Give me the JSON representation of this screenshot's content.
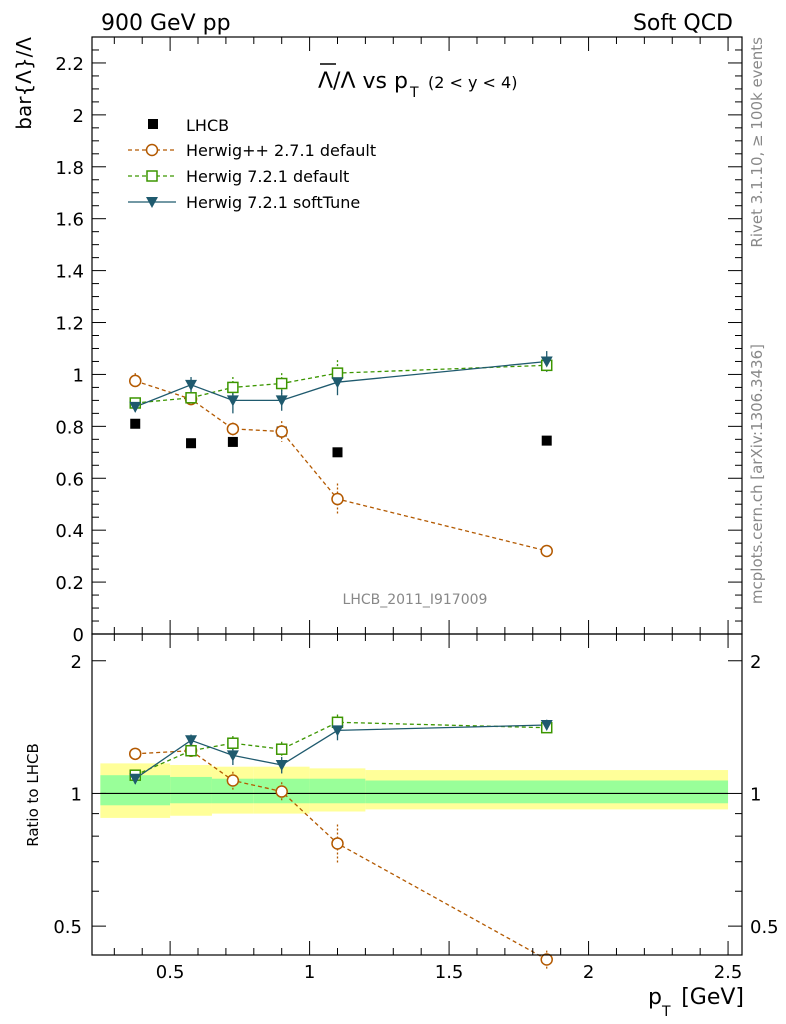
{
  "header": {
    "left": "900 GeV pp",
    "right": "Soft QCD"
  },
  "side_labels": {
    "rivet": "Rivet 3.1.10, ≥ 100k events",
    "mcplots": "mcplots.cern.ch [arXiv:1306.3436]"
  },
  "chart_data": [
    {
      "panel": "main",
      "type": "scatter",
      "title_main": "Λ/Λ vs p",
      "title_sub": "T",
      "title_range": "(2 < y < 4)",
      "ylabel": "bar{Λ}/Λ",
      "watermark": "LHCB_2011_I917009",
      "xlim": [
        0.22,
        2.55
      ],
      "ylim": [
        0,
        2.3
      ],
      "yticks": [
        0,
        0.2,
        0.4,
        0.6,
        0.8,
        1,
        1.2,
        1.4,
        1.6,
        1.8,
        2,
        2.2
      ],
      "ytick_labels": [
        "0",
        "0.2",
        "0.4",
        "0.6",
        "0.8",
        "1",
        "1.2",
        "1.4",
        "1.6",
        "1.8",
        "2",
        "2.2"
      ],
      "legend_position": "top-left",
      "series": [
        {
          "name": "LHCB",
          "style": "data",
          "color": "#000000",
          "marker": "square-filled",
          "x": [
            0.375,
            0.575,
            0.725,
            0.9,
            1.1,
            1.85
          ],
          "y": [
            0.81,
            0.735,
            0.74,
            0.78,
            0.7,
            0.745
          ],
          "err": [
            0.01,
            0.01,
            0.01,
            0.01,
            0.01,
            0.01
          ]
        },
        {
          "name": "Herwig++ 2.7.1 default",
          "style": "dashed",
          "color": "#b35900",
          "marker": "circle-open",
          "x": [
            0.375,
            0.575,
            0.725,
            0.9,
            1.1,
            1.85
          ],
          "y": [
            0.975,
            0.905,
            0.79,
            0.78,
            0.52,
            0.32
          ],
          "err": [
            0.03,
            0.02,
            0.025,
            0.04,
            0.06,
            0.015
          ]
        },
        {
          "name": "Herwig 7.2.1 default",
          "style": "dashed",
          "color": "#3c9600",
          "marker": "square-open",
          "x": [
            0.375,
            0.575,
            0.725,
            0.9,
            1.1,
            1.85
          ],
          "y": [
            0.89,
            0.91,
            0.95,
            0.965,
            1.005,
            1.035
          ],
          "err": [
            0.02,
            0.02,
            0.04,
            0.04,
            0.05,
            0.02
          ]
        },
        {
          "name": "Herwig 7.2.1 softTune",
          "style": "solid",
          "color": "#1f5a6e",
          "marker": "triangle-down-filled",
          "x": [
            0.375,
            0.575,
            0.725,
            0.9,
            1.1,
            1.85
          ],
          "y": [
            0.875,
            0.96,
            0.9,
            0.9,
            0.97,
            1.05
          ],
          "err": [
            0.02,
            0.03,
            0.05,
            0.04,
            0.05,
            0.04
          ]
        }
      ]
    },
    {
      "panel": "ratio",
      "type": "scatter",
      "ylabel": "Ratio to LHCB",
      "xlabel_main": "p",
      "xlabel_sub": "T",
      "xlabel_unit": "[GeV]",
      "scale": "log",
      "xlim": [
        0.22,
        2.55
      ],
      "ylim": [
        0.43,
        2.3
      ],
      "xticks": [
        0.5,
        1,
        1.5,
        2,
        2.5
      ],
      "xtick_labels": [
        "0.5",
        "1",
        "1.5",
        "2",
        "2.5"
      ],
      "yticks": [
        0.5,
        1,
        2
      ],
      "ytick_labels": [
        "0.5",
        "1",
        "2"
      ],
      "bands": {
        "x_edges": [
          0.25,
          0.5,
          0.65,
          0.8,
          1.0,
          1.2,
          2.5
        ],
        "outer": [
          [
            0.88,
            1.17
          ],
          [
            0.89,
            1.16
          ],
          [
            0.9,
            1.15
          ],
          [
            0.9,
            1.15
          ],
          [
            0.91,
            1.14
          ],
          [
            0.92,
            1.13
          ]
        ],
        "inner": [
          [
            0.94,
            1.1
          ],
          [
            0.95,
            1.09
          ],
          [
            0.95,
            1.08
          ],
          [
            0.95,
            1.08
          ],
          [
            0.95,
            1.08
          ],
          [
            0.95,
            1.07
          ]
        ]
      },
      "band_colors": {
        "outer": "#ffff99",
        "inner": "#99ff99"
      },
      "series": [
        {
          "name": "Herwig++ 2.7.1 default",
          "style": "dashed",
          "color": "#b35900",
          "marker": "circle-open",
          "x": [
            0.375,
            0.575,
            0.725,
            0.9,
            1.1,
            1.85
          ],
          "y": [
            1.23,
            1.25,
            1.07,
            1.01,
            0.77,
            0.42
          ],
          "err": [
            0.03,
            0.03,
            0.05,
            0.05,
            0.08,
            0.02
          ]
        },
        {
          "name": "Herwig 7.2.1 default",
          "style": "dashed",
          "color": "#3c9600",
          "marker": "square-open",
          "x": [
            0.375,
            0.575,
            0.725,
            0.9,
            1.1,
            1.85
          ],
          "y": [
            1.1,
            1.25,
            1.3,
            1.26,
            1.45,
            1.41
          ],
          "err": [
            0.03,
            0.03,
            0.05,
            0.05,
            0.06,
            0.03
          ]
        },
        {
          "name": "Herwig 7.2.1 softTune",
          "style": "solid",
          "color": "#1f5a6e",
          "marker": "triangle-down-filled",
          "x": [
            0.375,
            0.575,
            0.725,
            0.9,
            1.1,
            1.85
          ],
          "y": [
            1.08,
            1.32,
            1.22,
            1.16,
            1.39,
            1.43
          ],
          "err": [
            0.03,
            0.04,
            0.06,
            0.05,
            0.07,
            0.04
          ]
        }
      ]
    }
  ]
}
